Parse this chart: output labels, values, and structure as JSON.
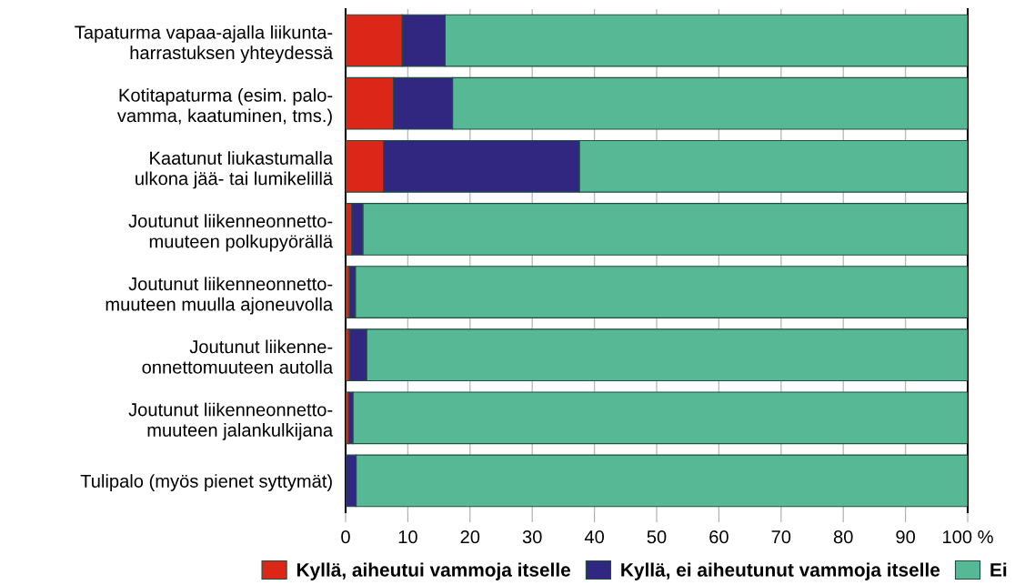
{
  "chart_data": {
    "type": "bar",
    "orientation": "horizontal",
    "stacked": true,
    "categories": [
      "Tapaturma vapaa-ajalla liikunta-\nharrastuksen yhteydessä",
      "Kotitapaturma (esim. palo-\nvamma, kaatuminen, tms.)",
      "Kaatunut liukastumalla\nulkona jää- tai lumikelillä",
      "Joutunut liikenneonnetto-\nmuuteen polkupyörällä",
      "Joutunut liikenneonnetto-\nmuuteen muulla ajoneuvolla",
      "Joutunut liikenne-\nonnettomuuteen autolla",
      "Joutunut liikenneonnetto-\nmuuteen jalankulkijana",
      "Tulipalo (myös pienet syttymät)"
    ],
    "series": [
      {
        "name": "Kyllä, aiheutui vammoja itselle",
        "color": "#dc2718",
        "values": [
          9.1,
          7.7,
          6.1,
          1.0,
          0.6,
          0.6,
          0.5,
          0
        ]
      },
      {
        "name": "Kyllä, ei aiheutunut vammoja itselle",
        "color": "#312680",
        "values": [
          6.9,
          9.5,
          31.5,
          1.8,
          1.0,
          2.8,
          0.7,
          1.7
        ]
      },
      {
        "name": "Ei",
        "color": "#57b895",
        "values": [
          84.0,
          82.8,
          62.4,
          97.2,
          98.4,
          96.6,
          98.8,
          98.3
        ]
      }
    ],
    "xlim": [
      0,
      100
    ],
    "xticks": [
      0,
      10,
      20,
      30,
      40,
      50,
      60,
      70,
      80,
      90,
      {
        "value": 100,
        "label": "100 %"
      }
    ],
    "grid": "x",
    "legend": "bottom"
  }
}
